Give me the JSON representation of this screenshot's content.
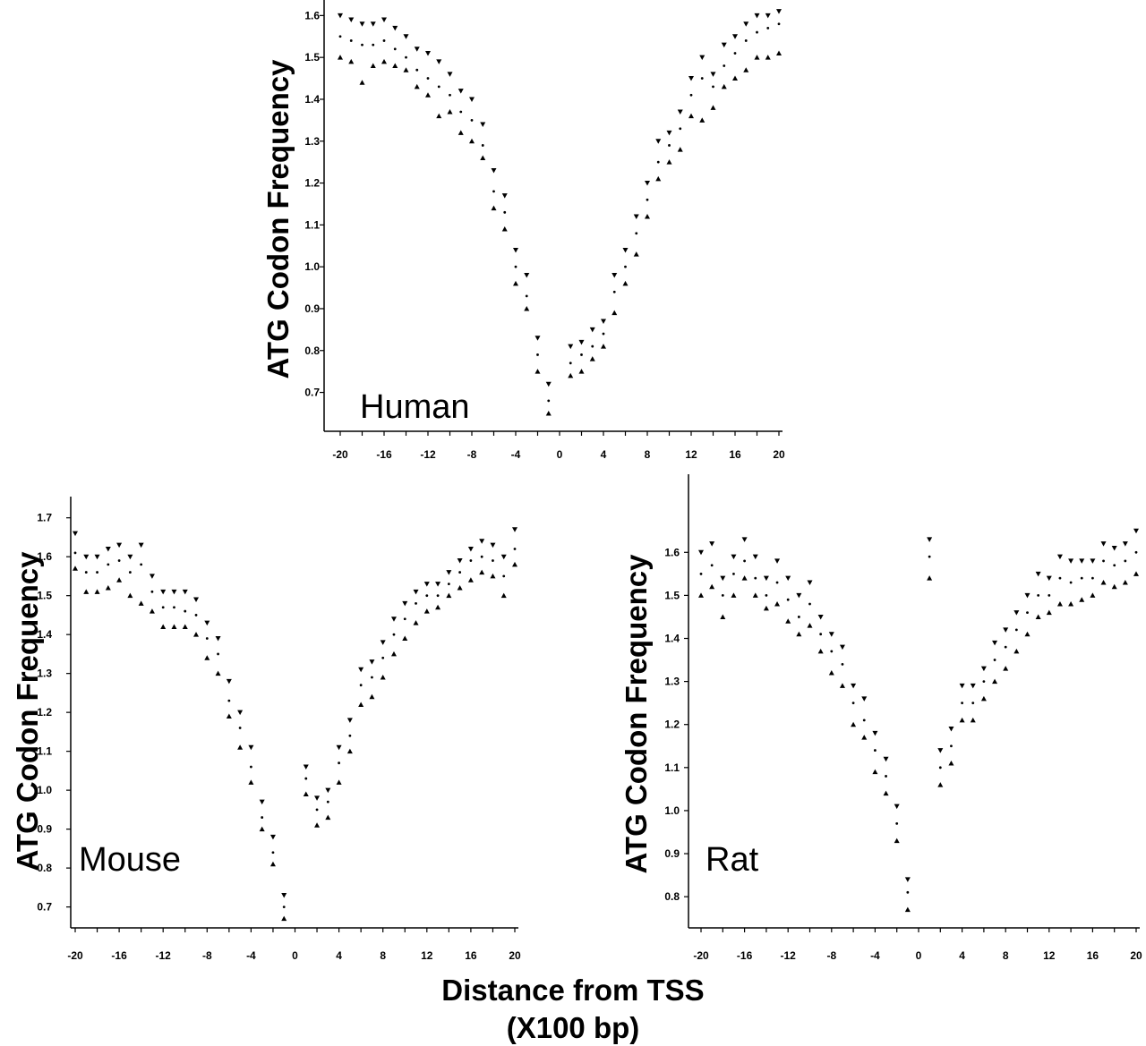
{
  "figure": {
    "xlabel_line1": "Distance from TSS",
    "xlabel_line2": "(X100 bp)"
  },
  "chart_data": [
    {
      "type": "scatter",
      "panel": "Human",
      "ylabel": "ATG Codon Frequency",
      "ylim": [
        0.62,
        1.62
      ],
      "xlim": [
        -21,
        20
      ],
      "yticks": [
        "0.7",
        "0.8",
        "0.9",
        "1.0",
        "1.1",
        "1.2",
        "1.3",
        "1.4",
        "1.5",
        "1.6"
      ],
      "xticks": [
        "-20",
        "-16",
        "-12",
        "-8",
        "-4",
        "0",
        "4",
        "8",
        "12",
        "16",
        "20"
      ],
      "x": [
        -20,
        -19,
        -18,
        -17,
        -16,
        -15,
        -14,
        -13,
        -12,
        -11,
        -10,
        -9,
        -8,
        -7,
        -6,
        -5,
        -4,
        -3,
        -2,
        -1,
        1,
        2,
        3,
        4,
        5,
        6,
        7,
        8,
        9,
        10,
        11,
        12,
        13,
        14,
        15,
        16,
        17,
        18,
        19,
        20
      ],
      "series": [
        {
          "marker": "down-triangle",
          "values": [
            1.6,
            1.59,
            1.58,
            1.58,
            1.59,
            1.57,
            1.55,
            1.52,
            1.51,
            1.49,
            1.46,
            1.42,
            1.4,
            1.34,
            1.23,
            1.17,
            1.04,
            0.98,
            0.83,
            0.72,
            0.81,
            0.82,
            0.85,
            0.87,
            0.98,
            1.04,
            1.12,
            1.2,
            1.3,
            1.32,
            1.37,
            1.45,
            1.5,
            1.46,
            1.53,
            1.55,
            1.58,
            1.6,
            1.6,
            1.61
          ]
        },
        {
          "marker": "dot",
          "values": [
            1.55,
            1.54,
            1.53,
            1.53,
            1.54,
            1.52,
            1.5,
            1.47,
            1.45,
            1.43,
            1.41,
            1.37,
            1.35,
            1.29,
            1.18,
            1.13,
            1.0,
            0.93,
            0.79,
            0.68,
            0.77,
            0.79,
            0.81,
            0.84,
            0.94,
            1.0,
            1.08,
            1.16,
            1.25,
            1.29,
            1.33,
            1.41,
            1.45,
            1.43,
            1.48,
            1.51,
            1.54,
            1.56,
            1.57,
            1.58
          ]
        },
        {
          "marker": "up-triangle",
          "values": [
            1.5,
            1.49,
            1.44,
            1.48,
            1.49,
            1.48,
            1.47,
            1.43,
            1.41,
            1.36,
            1.37,
            1.32,
            1.3,
            1.26,
            1.14,
            1.09,
            0.96,
            0.9,
            0.75,
            0.65,
            0.74,
            0.75,
            0.78,
            0.81,
            0.89,
            0.96,
            1.03,
            1.12,
            1.21,
            1.25,
            1.28,
            1.36,
            1.35,
            1.38,
            1.43,
            1.45,
            1.47,
            1.5,
            1.5,
            1.51
          ]
        }
      ]
    },
    {
      "type": "scatter",
      "panel": "Mouse",
      "ylabel": "ATG Codon Frequency",
      "ylim": [
        0.66,
        1.72
      ],
      "xlim": [
        -21,
        20
      ],
      "yticks": [
        "0.7",
        "0.8",
        "0.9",
        "1.0",
        "1.1",
        "1.2",
        "1.3",
        "1.4",
        "1.5",
        "1.6",
        "1.7"
      ],
      "xticks": [
        "-20",
        "-16",
        "-12",
        "-8",
        "-4",
        "0",
        "4",
        "8",
        "12",
        "16",
        "20"
      ],
      "x": [
        -20,
        -19,
        -18,
        -17,
        -16,
        -15,
        -14,
        -13,
        -12,
        -11,
        -10,
        -9,
        -8,
        -7,
        -6,
        -5,
        -4,
        -3,
        -2,
        -1,
        1,
        2,
        3,
        4,
        5,
        6,
        7,
        8,
        9,
        10,
        11,
        12,
        13,
        14,
        15,
        16,
        17,
        18,
        19,
        20
      ],
      "series": [
        {
          "marker": "down-triangle",
          "values": [
            1.66,
            1.6,
            1.6,
            1.62,
            1.63,
            1.6,
            1.63,
            1.55,
            1.51,
            1.51,
            1.51,
            1.49,
            1.43,
            1.39,
            1.28,
            1.2,
            1.11,
            0.97,
            0.88,
            0.73,
            1.06,
            0.98,
            1.0,
            1.11,
            1.18,
            1.31,
            1.33,
            1.38,
            1.44,
            1.48,
            1.51,
            1.53,
            1.53,
            1.56,
            1.59,
            1.62,
            1.64,
            1.63,
            1.6,
            1.67
          ]
        },
        {
          "marker": "dot",
          "values": [
            1.61,
            1.56,
            1.56,
            1.58,
            1.59,
            1.56,
            1.58,
            1.51,
            1.47,
            1.47,
            1.46,
            1.45,
            1.39,
            1.35,
            1.23,
            1.16,
            1.06,
            0.93,
            0.84,
            0.7,
            1.03,
            0.95,
            0.97,
            1.07,
            1.14,
            1.27,
            1.29,
            1.34,
            1.4,
            1.44,
            1.48,
            1.5,
            1.5,
            1.53,
            1.56,
            1.59,
            1.6,
            1.59,
            1.55,
            1.62
          ]
        },
        {
          "marker": "up-triangle",
          "values": [
            1.57,
            1.51,
            1.51,
            1.52,
            1.54,
            1.5,
            1.48,
            1.46,
            1.42,
            1.42,
            1.42,
            1.4,
            1.34,
            1.3,
            1.19,
            1.11,
            1.02,
            0.9,
            0.81,
            0.67,
            0.99,
            0.91,
            0.93,
            1.02,
            1.1,
            1.22,
            1.24,
            1.29,
            1.35,
            1.39,
            1.43,
            1.46,
            1.47,
            1.5,
            1.52,
            1.54,
            1.56,
            1.55,
            1.5,
            1.58
          ]
        }
      ]
    },
    {
      "type": "scatter",
      "panel": "Rat",
      "ylabel": "ATG Codon Frequency",
      "ylim": [
        0.74,
        1.69
      ],
      "xlim": [
        -21,
        20
      ],
      "yticks": [
        "0.8",
        "0.9",
        "1.0",
        "1.1",
        "1.2",
        "1.3",
        "1.4",
        "1.5",
        "1.6"
      ],
      "xticks": [
        "-20",
        "-16",
        "-12",
        "-8",
        "-4",
        "0",
        "4",
        "8",
        "12",
        "16",
        "20"
      ],
      "x": [
        -20,
        -19,
        -18,
        -17,
        -16,
        -15,
        -14,
        -13,
        -12,
        -11,
        -10,
        -9,
        -8,
        -7,
        -6,
        -5,
        -4,
        -3,
        -2,
        -1,
        1,
        2,
        3,
        4,
        5,
        6,
        7,
        8,
        9,
        10,
        11,
        12,
        13,
        14,
        15,
        16,
        17,
        18,
        19,
        20
      ],
      "series": [
        {
          "marker": "down-triangle",
          "values": [
            1.6,
            1.62,
            1.54,
            1.59,
            1.63,
            1.59,
            1.54,
            1.58,
            1.54,
            1.5,
            1.53,
            1.45,
            1.41,
            1.38,
            1.29,
            1.26,
            1.18,
            1.12,
            1.01,
            0.84,
            1.63,
            1.14,
            1.19,
            1.29,
            1.29,
            1.33,
            1.39,
            1.42,
            1.46,
            1.5,
            1.55,
            1.54,
            1.59,
            1.58,
            1.58,
            1.58,
            1.62,
            1.61,
            1.62,
            1.65
          ]
        },
        {
          "marker": "dot",
          "values": [
            1.55,
            1.57,
            1.5,
            1.55,
            1.58,
            1.54,
            1.5,
            1.53,
            1.49,
            1.45,
            1.48,
            1.41,
            1.37,
            1.34,
            1.25,
            1.21,
            1.14,
            1.08,
            0.97,
            0.81,
            1.59,
            1.1,
            1.15,
            1.25,
            1.25,
            1.3,
            1.35,
            1.38,
            1.42,
            1.46,
            1.5,
            1.5,
            1.54,
            1.53,
            1.54,
            1.54,
            1.58,
            1.57,
            1.58,
            1.6
          ]
        },
        {
          "marker": "up-triangle",
          "values": [
            1.5,
            1.52,
            1.45,
            1.5,
            1.54,
            1.5,
            1.47,
            1.48,
            1.44,
            1.41,
            1.43,
            1.37,
            1.32,
            1.29,
            1.2,
            1.17,
            1.09,
            1.04,
            0.93,
            0.77,
            1.54,
            1.06,
            1.11,
            1.21,
            1.21,
            1.26,
            1.3,
            1.33,
            1.37,
            1.41,
            1.45,
            1.46,
            1.48,
            1.48,
            1.49,
            1.5,
            1.53,
            1.52,
            1.53,
            1.55
          ]
        }
      ]
    }
  ]
}
